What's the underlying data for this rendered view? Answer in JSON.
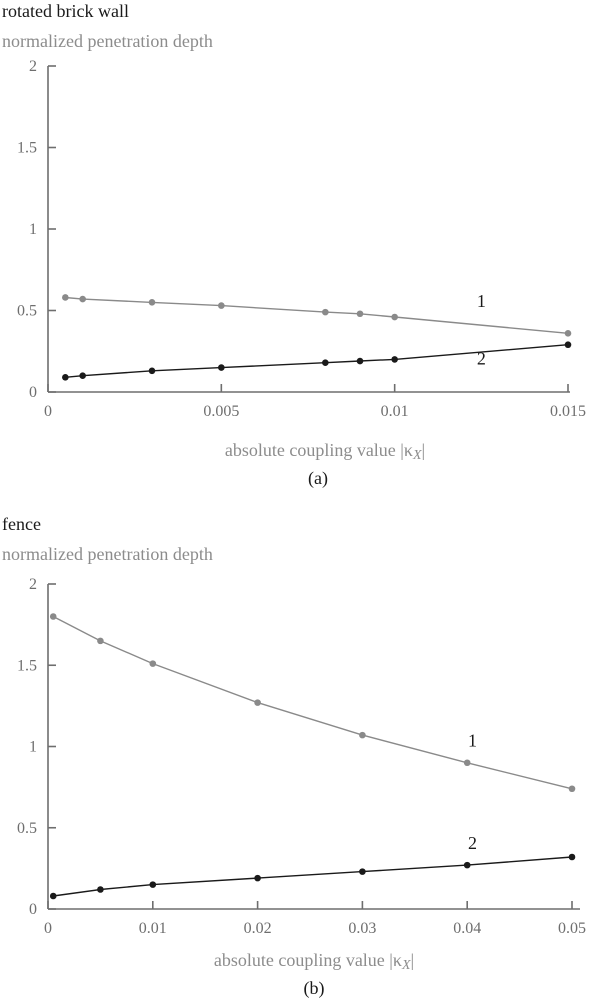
{
  "chart_data": [
    {
      "type": "line",
      "title": "rotated brick wall",
      "ylabel": "normalized penetration depth",
      "xlabel": "absolute coupling value |κ",
      "xlabel_subscript": "X",
      "xlabel_suffix": "|",
      "caption": "(a)",
      "xlim": [
        0,
        0.015
      ],
      "ylim": [
        0,
        2
      ],
      "xticks": [
        {
          "value": 0,
          "label": "0"
        },
        {
          "value": 0.005,
          "label": "0.005"
        },
        {
          "value": 0.01,
          "label": "0.01"
        },
        {
          "value": 0.015,
          "label": "0.015"
        }
      ],
      "yticks": [
        {
          "value": 0,
          "label": "0"
        },
        {
          "value": 0.5,
          "label": "0.5"
        },
        {
          "value": 1,
          "label": "1"
        },
        {
          "value": 1.5,
          "label": "1.5"
        },
        {
          "value": 2,
          "label": "2"
        }
      ],
      "series": [
        {
          "label": "1",
          "color": "#8a8a8a",
          "label_at": [
            0.0125,
            0.52
          ],
          "x": [
            0.0005,
            0.001,
            0.003,
            0.005,
            0.008,
            0.009,
            0.01,
            0.015
          ],
          "y": [
            0.58,
            0.57,
            0.55,
            0.53,
            0.49,
            0.48,
            0.46,
            0.36
          ]
        },
        {
          "label": "2",
          "color": "#1a1a1a",
          "label_at": [
            0.0125,
            0.17
          ],
          "x": [
            0.0005,
            0.001,
            0.003,
            0.005,
            0.008,
            0.009,
            0.01,
            0.015
          ],
          "y": [
            0.09,
            0.1,
            0.13,
            0.15,
            0.18,
            0.19,
            0.2,
            0.29
          ]
        }
      ]
    },
    {
      "type": "line",
      "title": "fence",
      "ylabel": "normalized penetration depth",
      "xlabel": "absolute coupling value |κ",
      "xlabel_subscript": "X",
      "xlabel_suffix": "|",
      "caption": "(b)",
      "xlim": [
        0,
        0.05
      ],
      "ylim": [
        0,
        2
      ],
      "xticks": [
        {
          "value": 0,
          "label": "0"
        },
        {
          "value": 0.01,
          "label": "0.01"
        },
        {
          "value": 0.02,
          "label": "0.02"
        },
        {
          "value": 0.03,
          "label": "0.03"
        },
        {
          "value": 0.04,
          "label": "0.04"
        },
        {
          "value": 0.05,
          "label": "0.05"
        }
      ],
      "yticks": [
        {
          "value": 0,
          "label": "0"
        },
        {
          "value": 0.5,
          "label": "0.5"
        },
        {
          "value": 1,
          "label": "1"
        },
        {
          "value": 1.5,
          "label": "1.5"
        },
        {
          "value": 2,
          "label": "2"
        }
      ],
      "series": [
        {
          "label": "1",
          "color": "#8a8a8a",
          "label_at": [
            0.0405,
            1.0
          ],
          "x": [
            0.0005,
            0.005,
            0.01,
            0.02,
            0.03,
            0.04,
            0.05
          ],
          "y": [
            1.8,
            1.65,
            1.51,
            1.27,
            1.07,
            0.9,
            0.74
          ]
        },
        {
          "label": "2",
          "color": "#1a1a1a",
          "label_at": [
            0.0405,
            0.37
          ],
          "x": [
            0.0005,
            0.005,
            0.01,
            0.02,
            0.03,
            0.04,
            0.05
          ],
          "y": [
            0.08,
            0.12,
            0.15,
            0.19,
            0.23,
            0.27,
            0.32
          ]
        }
      ]
    }
  ]
}
